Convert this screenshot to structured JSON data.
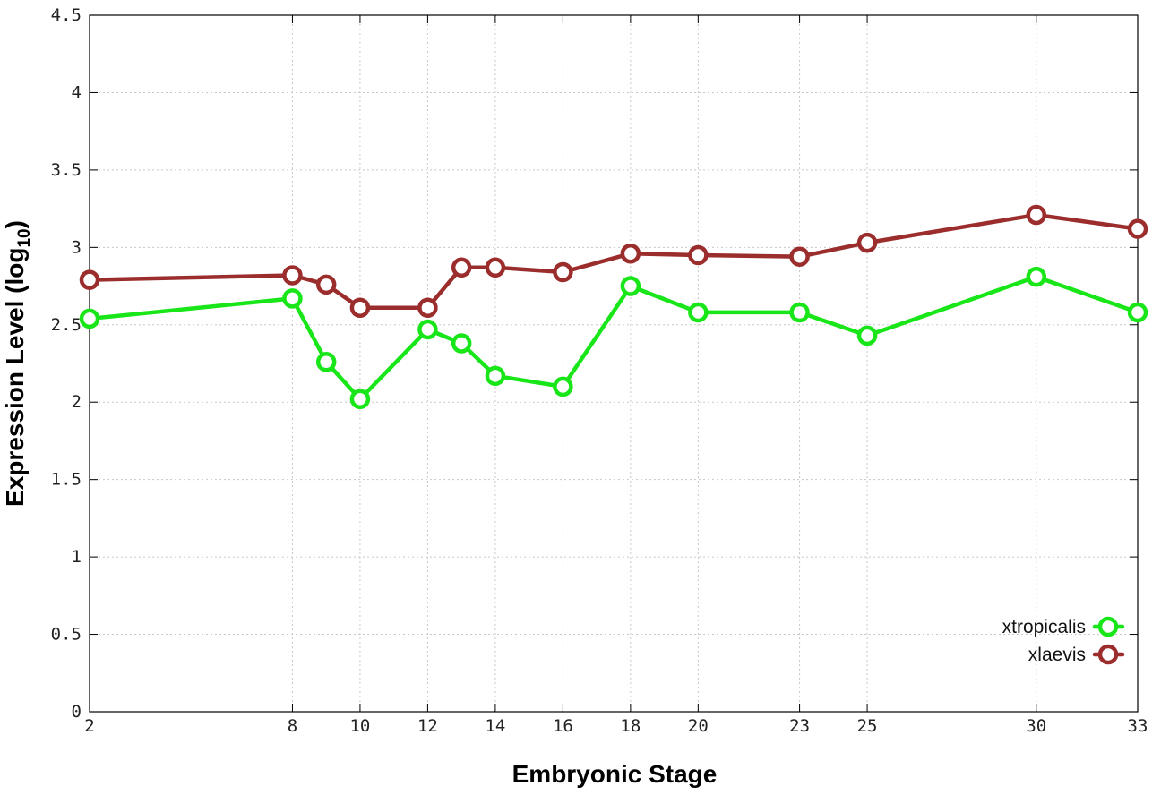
{
  "chart_data": {
    "type": "line",
    "xlabel": "Embryonic Stage",
    "ylabel": "Expression Level (log",
    "ylabel_subscript": "10",
    "ylabel_close": ")",
    "categories": [
      "2",
      "8",
      "9",
      "10",
      "12",
      "13",
      "14",
      "16",
      "18",
      "20",
      "23",
      "25",
      "30",
      "33"
    ],
    "x_tick_labels": [
      "2",
      "8",
      "10",
      "12",
      "14",
      "16",
      "18",
      "20",
      "23",
      "25",
      "30",
      "33"
    ],
    "ylim": [
      0,
      4.5
    ],
    "y_ticks": [
      0,
      0.5,
      1,
      1.5,
      2,
      2.5,
      3,
      3.5,
      4,
      4.5
    ],
    "y_tick_labels": [
      "0",
      "0.5",
      "1",
      "1.5",
      "2",
      "2.5",
      "3",
      "3.5",
      "4",
      "4.5"
    ],
    "grid": true,
    "legend_position": "bottom-right",
    "series": [
      {
        "name": "xtropicalis",
        "color": "#19e619",
        "marker": "open-circle",
        "x": [
          2,
          8,
          9,
          10,
          12,
          13,
          14,
          16,
          18,
          20,
          23,
          25,
          30,
          33
        ],
        "values": [
          2.54,
          2.67,
          2.26,
          2.02,
          2.47,
          2.38,
          2.17,
          2.1,
          2.75,
          2.58,
          2.58,
          2.43,
          2.81,
          2.58
        ]
      },
      {
        "name": "xlaevis",
        "color": "#9b2d2d",
        "marker": "open-circle",
        "x": [
          2,
          8,
          9,
          10,
          12,
          13,
          14,
          16,
          18,
          20,
          23,
          25,
          30,
          33
        ],
        "values": [
          2.79,
          2.82,
          2.76,
          2.61,
          2.61,
          2.87,
          2.87,
          2.84,
          2.96,
          2.95,
          2.94,
          3.03,
          3.21,
          3.12
        ]
      }
    ]
  }
}
